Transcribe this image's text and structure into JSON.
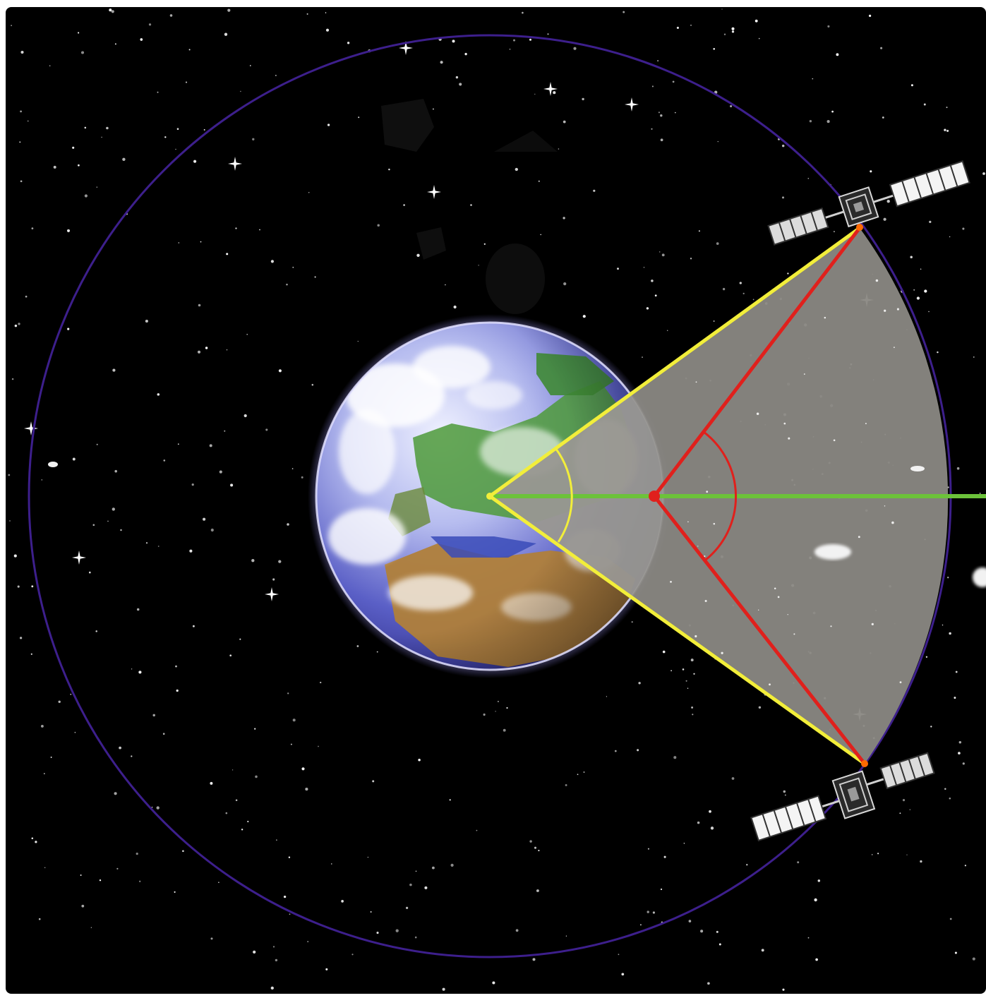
{
  "colors": {
    "frame": "#ffffff",
    "space": "#000000",
    "orbit": "#3d1f8c",
    "coverage_sector": "#8a8883",
    "earth_angle_lines": "#f2ee3a",
    "offset_angle_lines": "#e0201c",
    "center_axis": "#6cc23a",
    "ocean": "#3a4bb8",
    "land_green": "#4e9a3a",
    "land_desert": "#b0803a",
    "cloud": "#ffffff"
  },
  "icons": {
    "upper_satellite": "satellite-icon",
    "lower_satellite": "satellite-icon",
    "earth": "earth-globe-icon"
  }
}
